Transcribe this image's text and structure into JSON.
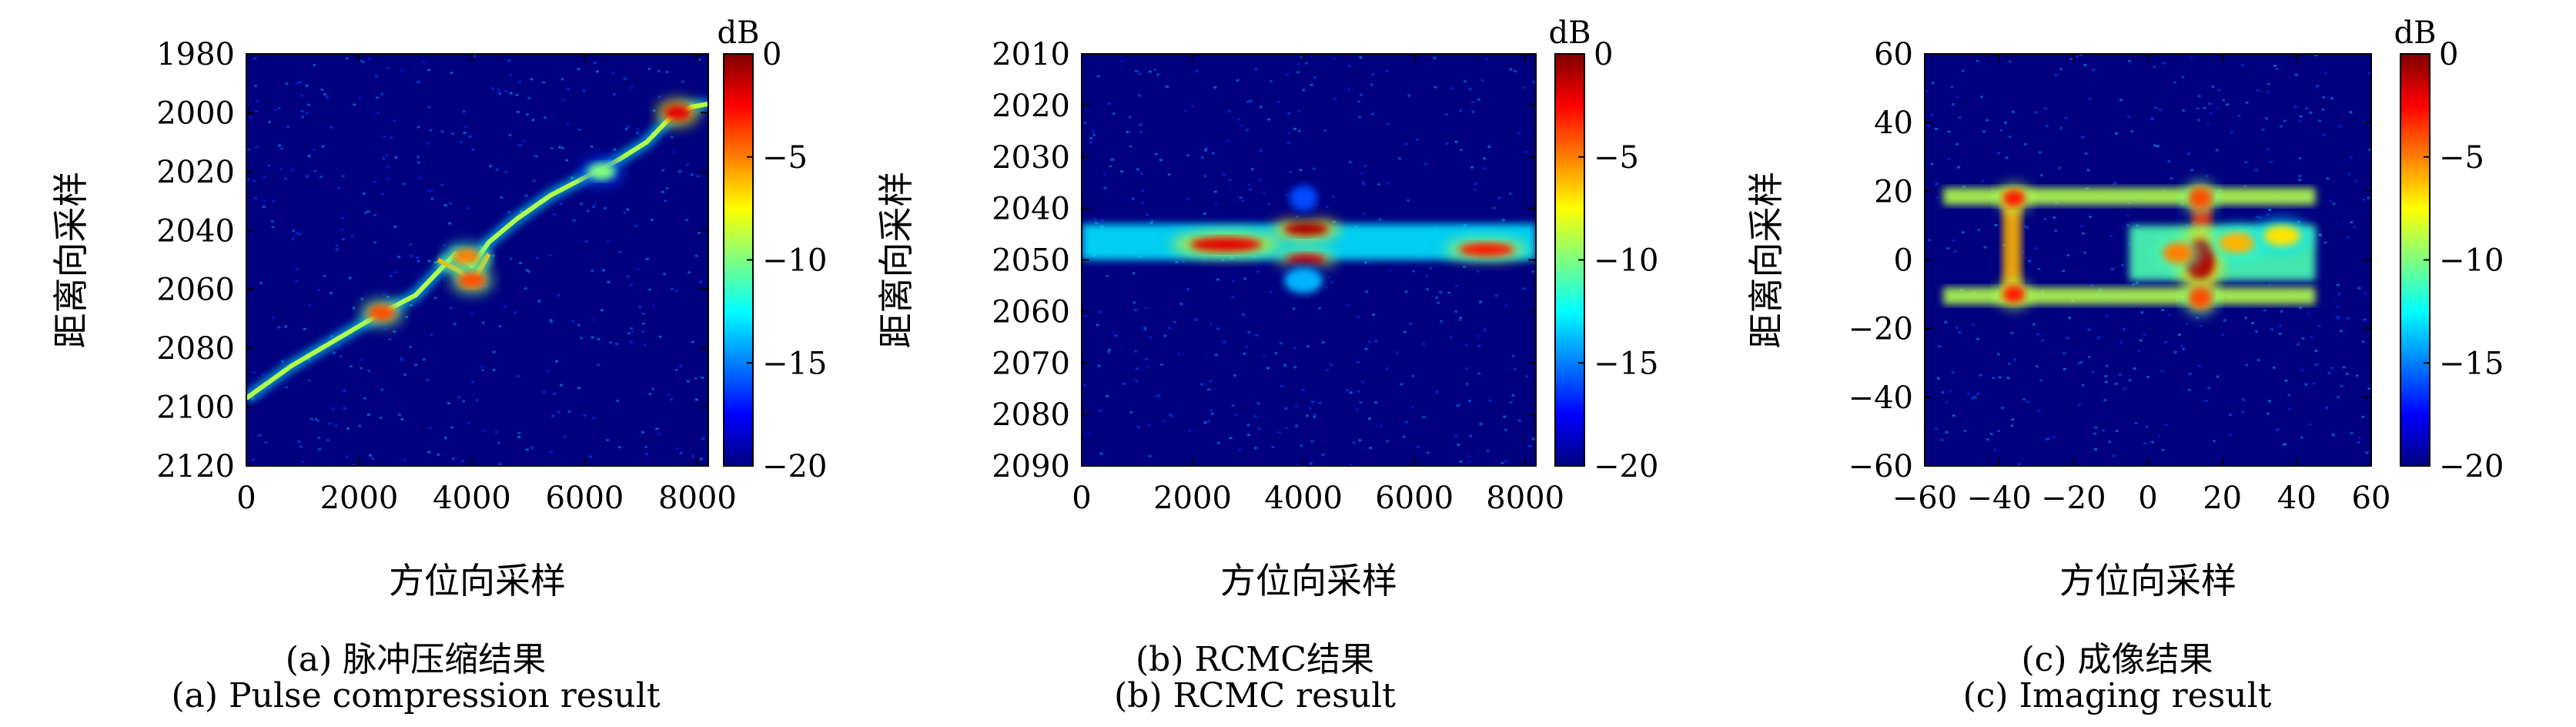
{
  "colormap": [
    "#00007f",
    "#0000ff",
    "#007fff",
    "#00ffff",
    "#7fff7f",
    "#ffff00",
    "#ff7f00",
    "#ff0000",
    "#7f0000"
  ],
  "chart_data": [
    {
      "type": "heatmap",
      "panel": "a",
      "xlabel": "方位向采样",
      "ylabel": "距离向采样",
      "xlim": [
        0,
        8192
      ],
      "ylim": [
        1980,
        2120
      ],
      "y_inverted": true,
      "xticks": [
        "0",
        "2000",
        "4000",
        "6000",
        "8000"
      ],
      "xtick_values": [
        0,
        2000,
        4000,
        6000,
        8000
      ],
      "yticks": [
        "1980",
        "2000",
        "2020",
        "2040",
        "2060",
        "2080",
        "2100",
        "2120"
      ],
      "ytick_values": [
        1980,
        2000,
        2020,
        2040,
        2060,
        2080,
        2100,
        2120
      ],
      "colorbar_label": "dB",
      "colorbar_range": [
        -20,
        0
      ],
      "colorbar_ticks": [
        "0",
        "−5",
        "−10",
        "−15",
        "−20"
      ],
      "colorbar_tick_values": [
        0,
        -5,
        -10,
        -15,
        -20
      ],
      "caption_cn": "(a) 脉冲压缩结果",
      "caption_en": "(a) Pulse compression result",
      "features": [
        {
          "kind": "curve",
          "points": [
            [
              0,
              2097
            ],
            [
              800,
              2086
            ],
            [
              1600,
              2077
            ],
            [
              2400,
              2068
            ],
            [
              3000,
              2062
            ],
            [
              3400,
              2054
            ],
            [
              3700,
              2048
            ],
            [
              4000,
              2052
            ],
            [
              4300,
              2044
            ],
            [
              4800,
              2036
            ],
            [
              5400,
              2028
            ],
            [
              6000,
              2022
            ],
            [
              6600,
              2016
            ],
            [
              7100,
              2010
            ],
            [
              7500,
              2002
            ],
            [
              7900,
              1998
            ],
            [
              8192,
              1997
            ]
          ],
          "level": -9
        },
        {
          "kind": "curve",
          "points": [
            [
              3400,
              2050
            ],
            [
              3800,
              2054
            ],
            [
              4000,
              2058
            ],
            [
              4300,
              2048
            ]
          ],
          "level": -6
        },
        {
          "kind": "spot",
          "x": 2400,
          "y": 2068,
          "level": -4
        },
        {
          "kind": "spot",
          "x": 3900,
          "y": 2049,
          "level": -5
        },
        {
          "kind": "spot",
          "x": 4000,
          "y": 2057,
          "level": -4
        },
        {
          "kind": "spot",
          "x": 7650,
          "y": 2000,
          "level": -2
        },
        {
          "kind": "spot",
          "x": 6300,
          "y": 2020,
          "level": -10
        }
      ]
    },
    {
      "type": "heatmap",
      "panel": "b",
      "xlabel": "方位向采样",
      "ylabel": "距离向采样",
      "xlim": [
        0,
        8192
      ],
      "ylim": [
        2010,
        2090
      ],
      "y_inverted": true,
      "xticks": [
        "0",
        "2000",
        "4000",
        "6000",
        "8000"
      ],
      "xtick_values": [
        0,
        2000,
        4000,
        6000,
        8000
      ],
      "yticks": [
        "2010",
        "2020",
        "2030",
        "2040",
        "2050",
        "2060",
        "2070",
        "2080",
        "2090"
      ],
      "ytick_values": [
        2010,
        2020,
        2030,
        2040,
        2050,
        2060,
        2070,
        2080,
        2090
      ],
      "colorbar_label": "dB",
      "colorbar_range": [
        -20,
        0
      ],
      "colorbar_ticks": [
        "0",
        "−5",
        "−10",
        "−15",
        "−20"
      ],
      "colorbar_tick_values": [
        0,
        -5,
        -10,
        -15,
        -20
      ],
      "caption_cn": "(b) RCMC结果",
      "caption_en": "(b) RCMC result",
      "features": [
        {
          "kind": "band",
          "x0": 0,
          "x1": 8192,
          "y0": 2043,
          "y1": 2050,
          "level": -13
        },
        {
          "kind": "spot",
          "x": 2600,
          "y": 2047,
          "level": -2,
          "rx": 650,
          "ry": 1.4
        },
        {
          "kind": "spot",
          "x": 4050,
          "y": 2044,
          "level": -1,
          "rx": 400,
          "ry": 1.3
        },
        {
          "kind": "spot",
          "x": 4050,
          "y": 2050,
          "level": -3,
          "rx": 350,
          "ry": 1.2
        },
        {
          "kind": "spot",
          "x": 7300,
          "y": 2048,
          "level": -3,
          "rx": 500,
          "ry": 1.3
        },
        {
          "kind": "spot",
          "x": 4000,
          "y": 2054,
          "level": -14,
          "rx": 350,
          "ry": 2.5
        },
        {
          "kind": "spot",
          "x": 4000,
          "y": 2038,
          "level": -16,
          "rx": 250,
          "ry": 2.5
        }
      ]
    },
    {
      "type": "heatmap",
      "panel": "c",
      "xlabel": "方位向采样",
      "ylabel": "距离向采样",
      "xlim": [
        -60,
        60
      ],
      "ylim": [
        -60,
        60
      ],
      "y_inverted": false,
      "xticks": [
        "−60",
        "−40",
        "−20",
        "0",
        "20",
        "40",
        "60"
      ],
      "xtick_values": [
        -60,
        -40,
        -20,
        0,
        20,
        40,
        60
      ],
      "yticks": [
        "60",
        "40",
        "20",
        "0",
        "−20",
        "−40",
        "−60"
      ],
      "ytick_values": [
        60,
        40,
        20,
        0,
        -20,
        -40,
        -60
      ],
      "colorbar_label": "dB",
      "colorbar_range": [
        -20,
        0
      ],
      "colorbar_ticks": [
        "0",
        "−5",
        "−10",
        "−15",
        "−20"
      ],
      "colorbar_tick_values": [
        0,
        -5,
        -10,
        -15,
        -20
      ],
      "caption_cn": "(c) 成像结果",
      "caption_en": "(c) Imaging result",
      "features": [
        {
          "kind": "band",
          "x0": -55,
          "x1": 45,
          "y0": 16,
          "y1": 21,
          "level": -9
        },
        {
          "kind": "band",
          "x0": -55,
          "x1": 45,
          "y0": -13,
          "y1": -8,
          "level": -9
        },
        {
          "kind": "band",
          "x0": -39,
          "x1": -34,
          "y0": -12,
          "y1": 20,
          "level": -6
        },
        {
          "kind": "band",
          "x0": 12,
          "x1": 17,
          "y0": -14,
          "y1": 21,
          "level": -3
        },
        {
          "kind": "band",
          "x0": -5,
          "x1": 45,
          "y0": -6,
          "y1": 10,
          "level": -11
        },
        {
          "kind": "spot",
          "x": -36,
          "y": 18,
          "level": -3,
          "rx": 3,
          "ry": 2.5
        },
        {
          "kind": "spot",
          "x": -36,
          "y": -10,
          "level": -3,
          "rx": 3,
          "ry": 2.5
        },
        {
          "kind": "spot",
          "x": 14,
          "y": 0,
          "level": -1,
          "rx": 4,
          "ry": 6
        },
        {
          "kind": "spot",
          "x": 8,
          "y": 2,
          "level": -5,
          "rx": 4,
          "ry": 3
        },
        {
          "kind": "spot",
          "x": 24,
          "y": 5,
          "level": -6,
          "rx": 5,
          "ry": 3
        },
        {
          "kind": "spot",
          "x": 36,
          "y": 7,
          "level": -7,
          "rx": 5,
          "ry": 3
        },
        {
          "kind": "spot",
          "x": 14,
          "y": 18,
          "level": -4,
          "rx": 3,
          "ry": 3
        },
        {
          "kind": "spot",
          "x": 14,
          "y": -11,
          "level": -4,
          "rx": 3,
          "ry": 3
        }
      ]
    }
  ]
}
